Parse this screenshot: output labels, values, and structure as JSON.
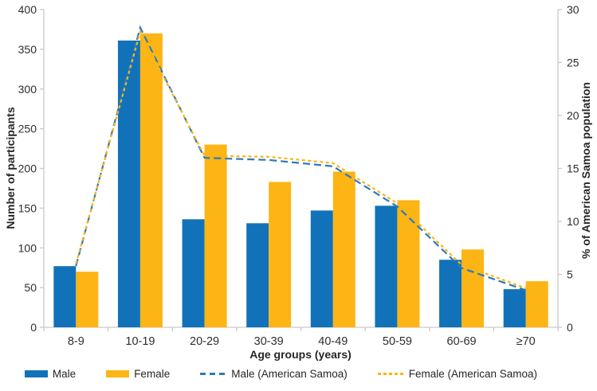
{
  "chart_data": {
    "type": "bar",
    "title": "",
    "categories": [
      "8-9",
      "10-19",
      "20-29",
      "30-39",
      "40-49",
      "50-59",
      "60-69",
      "≥70"
    ],
    "bar_series": [
      {
        "name": "Male",
        "color": "#1272b9",
        "values": [
          77,
          361,
          136,
          131,
          147,
          153,
          85,
          48
        ]
      },
      {
        "name": "Female",
        "color": "#fcb514",
        "values": [
          70,
          370,
          230,
          183,
          196,
          160,
          98,
          58
        ]
      }
    ],
    "line_series": [
      {
        "name": "Male (American Samoa)",
        "color": "#2a7abf",
        "dash": "9 5",
        "values": [
          5.8,
          28.3,
          16.0,
          15.8,
          15.2,
          11.4,
          5.6,
          3.5
        ]
      },
      {
        "name": "Female (American Samoa)",
        "color": "#fcb514",
        "dash": "4 3.5",
        "values": [
          6.0,
          27.9,
          16.2,
          16.1,
          15.5,
          11.7,
          5.9,
          3.7
        ]
      }
    ],
    "xlabel": "Age groups (years)",
    "ylabel_left": "Number of participants",
    "ylabel_right": "% of American Samoa population",
    "y_left": {
      "min": 0,
      "max": 400,
      "step": 50
    },
    "y_right": {
      "min": 0,
      "max": 30,
      "step": 5
    },
    "grid": false,
    "legend_position": "bottom",
    "axis_color": "#c9c9c9",
    "tick_text_color": "#2e2e2e"
  }
}
